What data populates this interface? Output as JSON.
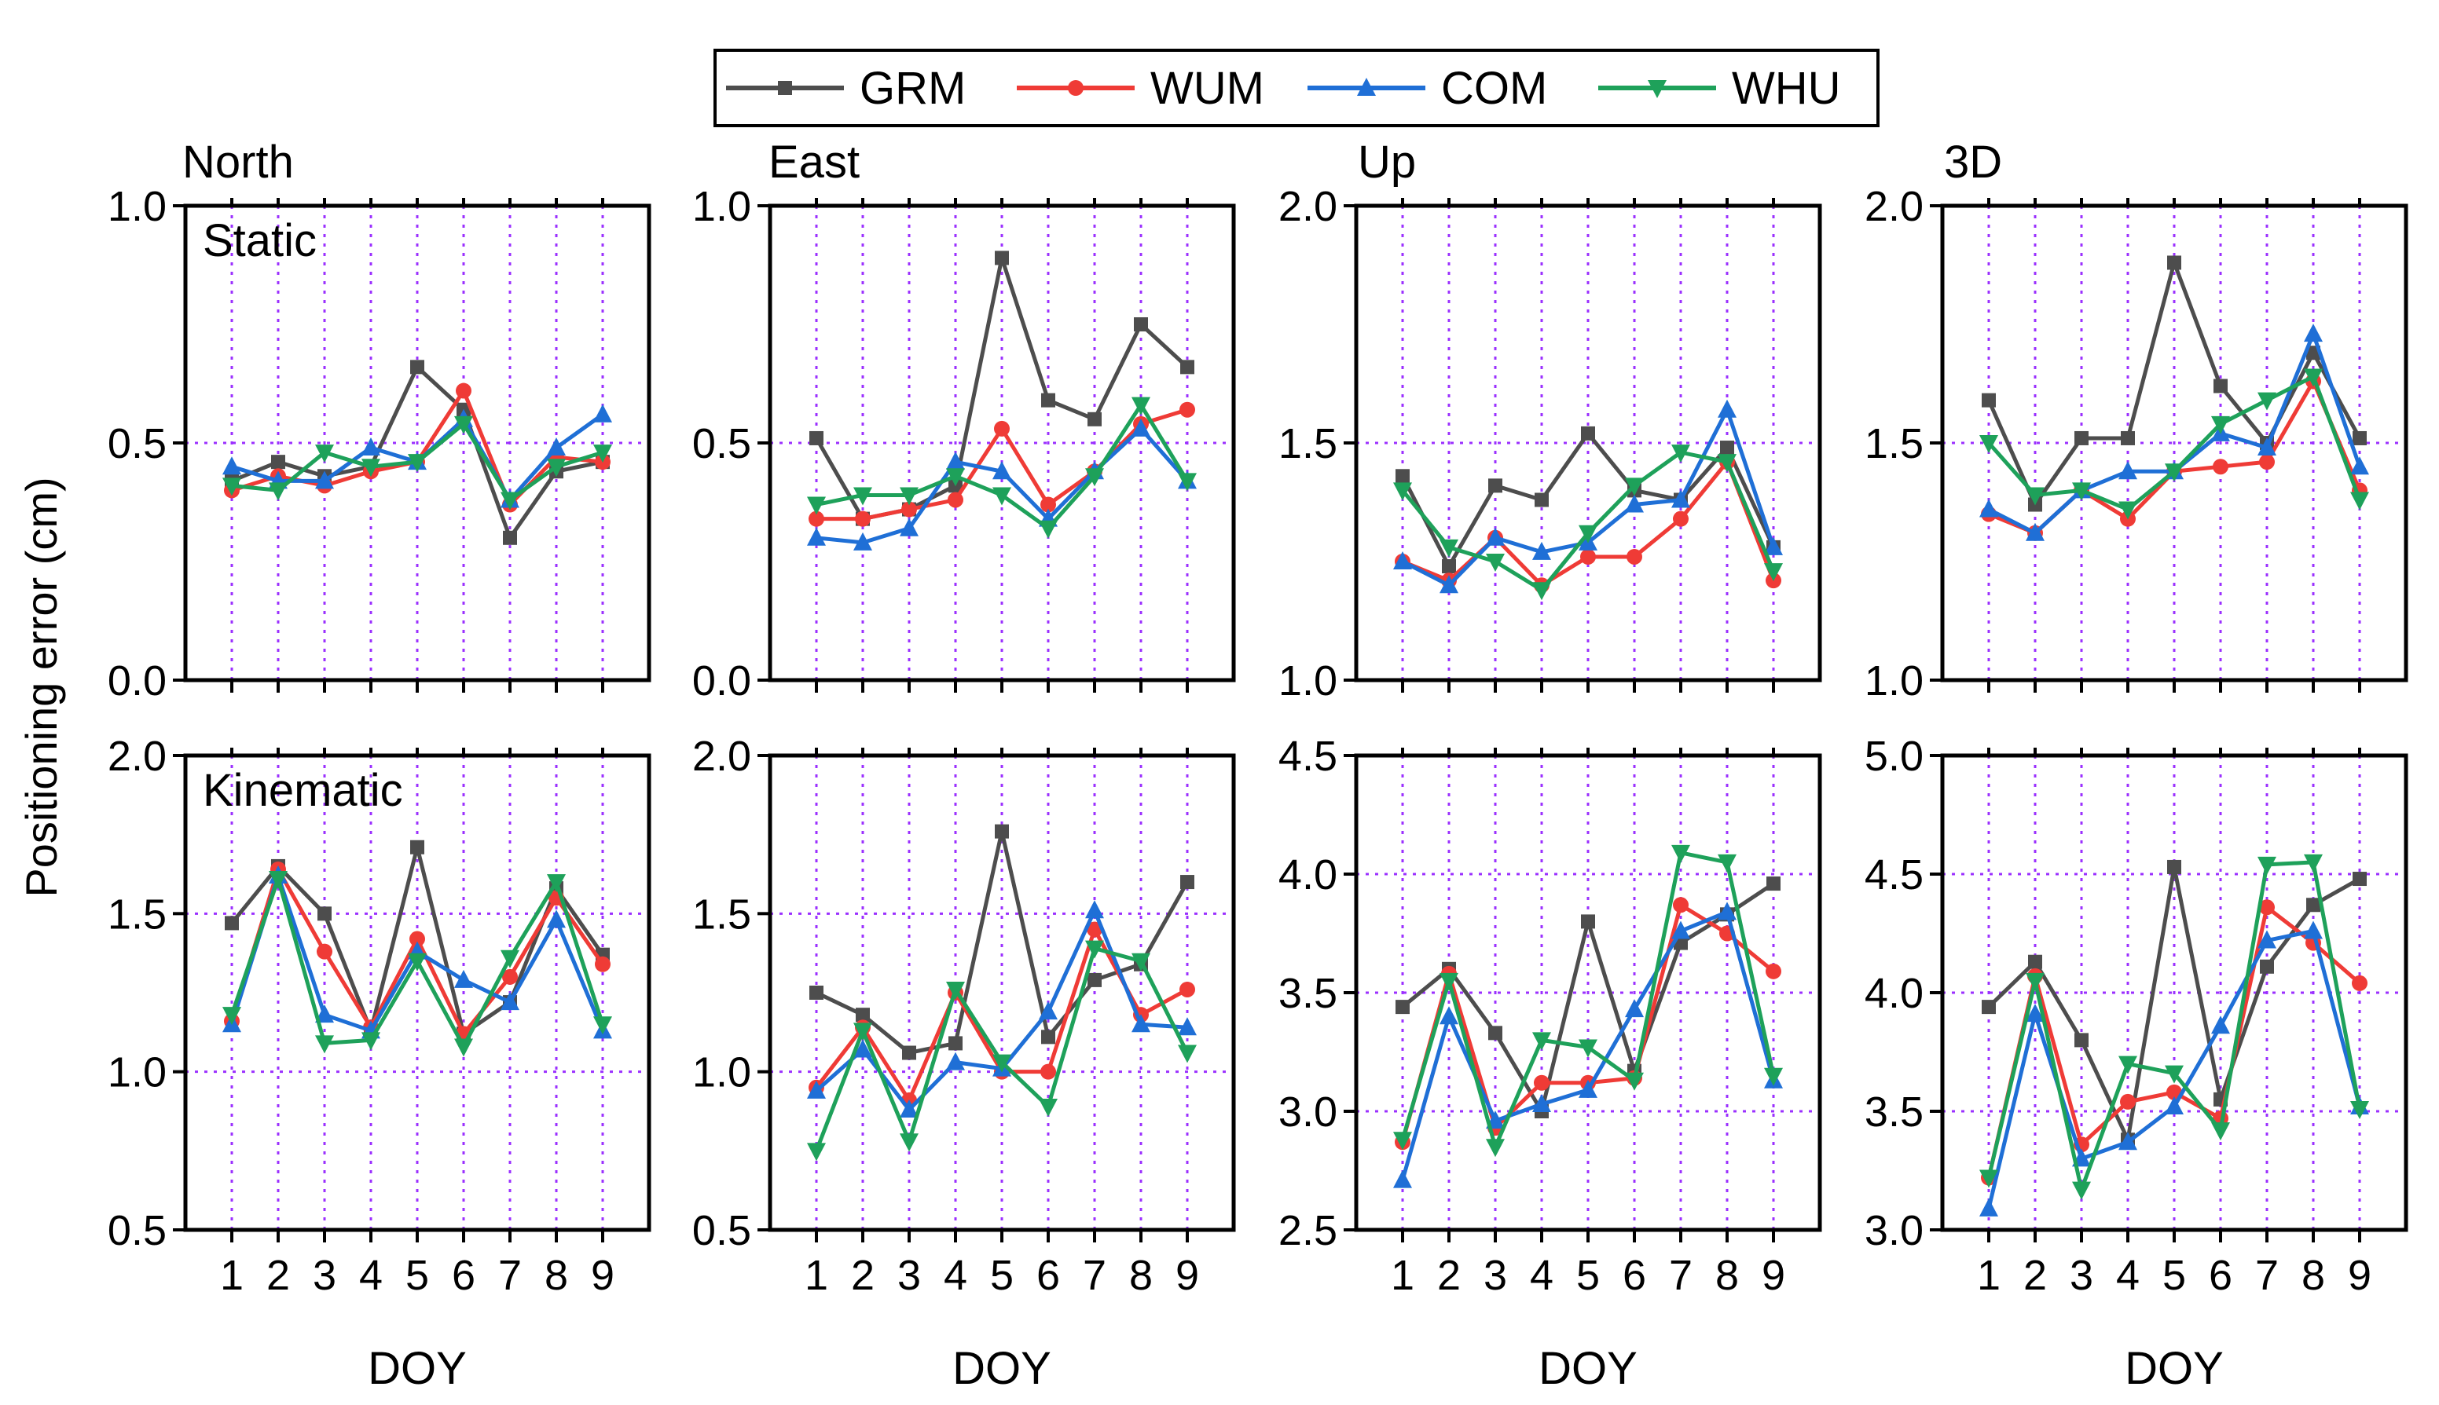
{
  "legend": [
    {
      "name": "GRM",
      "color": "#4d4d4d",
      "marker": "square"
    },
    {
      "name": "WUM",
      "color": "#ef3b36",
      "marker": "circle"
    },
    {
      "name": "COM",
      "color": "#1f6fd6",
      "marker": "triangle-up"
    },
    {
      "name": "WHU",
      "color": "#1ea15a",
      "marker": "triangle-down"
    }
  ],
  "y_axis_label": "Positioning error (cm)",
  "x_axis_label": "DOY",
  "row_labels": [
    "Static",
    "Kinematic"
  ],
  "chart_data": [
    {
      "type": "line",
      "title": "North",
      "mode": "Static",
      "xlabel": "",
      "ylabel": "Positioning error (cm)",
      "x": [
        1,
        2,
        3,
        4,
        5,
        6,
        7,
        8,
        9
      ],
      "ylim": [
        0.0,
        1.0
      ],
      "yticks": [
        "0.0",
        "0.5",
        "1.0"
      ],
      "series": [
        {
          "name": "GRM",
          "values": [
            0.42,
            0.46,
            0.43,
            0.45,
            0.66,
            0.57,
            0.3,
            0.44,
            0.46
          ]
        },
        {
          "name": "WUM",
          "values": [
            0.4,
            0.43,
            0.41,
            0.44,
            0.46,
            0.61,
            0.37,
            0.47,
            0.46
          ]
        },
        {
          "name": "COM",
          "values": [
            0.45,
            0.42,
            0.42,
            0.49,
            0.46,
            0.55,
            0.38,
            0.49,
            0.56
          ]
        },
        {
          "name": "WHU",
          "values": [
            0.41,
            0.4,
            0.48,
            0.45,
            0.46,
            0.54,
            0.38,
            0.45,
            0.48
          ]
        }
      ]
    },
    {
      "type": "line",
      "title": "East",
      "mode": "Static",
      "xlabel": "",
      "x": [
        1,
        2,
        3,
        4,
        5,
        6,
        7,
        8,
        9
      ],
      "ylim": [
        0.0,
        1.0
      ],
      "yticks": [
        "0.0",
        "0.5",
        "1.0"
      ],
      "series": [
        {
          "name": "GRM",
          "values": [
            0.51,
            0.34,
            0.36,
            0.41,
            0.89,
            0.59,
            0.55,
            0.75,
            0.66
          ]
        },
        {
          "name": "WUM",
          "values": [
            0.34,
            0.34,
            0.36,
            0.38,
            0.53,
            0.37,
            0.44,
            0.54,
            0.57
          ]
        },
        {
          "name": "COM",
          "values": [
            0.3,
            0.29,
            0.32,
            0.46,
            0.44,
            0.34,
            0.44,
            0.53,
            0.42
          ]
        },
        {
          "name": "WHU",
          "values": [
            0.37,
            0.39,
            0.39,
            0.43,
            0.39,
            0.32,
            0.43,
            0.58,
            0.42
          ]
        }
      ]
    },
    {
      "type": "line",
      "title": "Up",
      "mode": "Static",
      "xlabel": "",
      "x": [
        1,
        2,
        3,
        4,
        5,
        6,
        7,
        8,
        9
      ],
      "ylim": [
        1.0,
        2.0
      ],
      "yticks": [
        "1.0",
        "1.5",
        "2.0"
      ],
      "series": [
        {
          "name": "GRM",
          "values": [
            1.43,
            1.24,
            1.41,
            1.38,
            1.52,
            1.4,
            1.38,
            1.49,
            1.28
          ]
        },
        {
          "name": "WUM",
          "values": [
            1.25,
            1.21,
            1.3,
            1.2,
            1.26,
            1.26,
            1.34,
            1.46,
            1.21
          ]
        },
        {
          "name": "COM",
          "values": [
            1.25,
            1.2,
            1.3,
            1.27,
            1.29,
            1.37,
            1.38,
            1.57,
            1.28
          ]
        },
        {
          "name": "WHU",
          "values": [
            1.4,
            1.28,
            1.25,
            1.19,
            1.31,
            1.41,
            1.48,
            1.46,
            1.23
          ]
        }
      ]
    },
    {
      "type": "line",
      "title": "3D",
      "mode": "Static",
      "xlabel": "",
      "x": [
        1,
        2,
        3,
        4,
        5,
        6,
        7,
        8,
        9
      ],
      "ylim": [
        1.0,
        2.0
      ],
      "yticks": [
        "1.0",
        "1.5",
        "2.0"
      ],
      "series": [
        {
          "name": "GRM",
          "values": [
            1.59,
            1.37,
            1.51,
            1.51,
            1.88,
            1.62,
            1.5,
            1.69,
            1.51
          ]
        },
        {
          "name": "WUM",
          "values": [
            1.35,
            1.31,
            1.4,
            1.34,
            1.44,
            1.45,
            1.46,
            1.63,
            1.4
          ]
        },
        {
          "name": "COM",
          "values": [
            1.36,
            1.31,
            1.4,
            1.44,
            1.44,
            1.52,
            1.49,
            1.73,
            1.45
          ]
        },
        {
          "name": "WHU",
          "values": [
            1.5,
            1.39,
            1.4,
            1.36,
            1.44,
            1.54,
            1.59,
            1.64,
            1.38
          ]
        }
      ]
    },
    {
      "type": "line",
      "title": "",
      "mode": "Kinematic",
      "xlabel": "DOY",
      "x": [
        1,
        2,
        3,
        4,
        5,
        6,
        7,
        8,
        9
      ],
      "ylim": [
        0.5,
        2.0
      ],
      "yticks": [
        "0.5",
        "1.0",
        "1.5",
        "2.0"
      ],
      "series": [
        {
          "name": "GRM",
          "values": [
            1.47,
            1.65,
            1.5,
            1.13,
            1.71,
            1.12,
            1.22,
            1.58,
            1.37
          ]
        },
        {
          "name": "WUM",
          "values": [
            1.16,
            1.64,
            1.38,
            1.14,
            1.42,
            1.12,
            1.3,
            1.55,
            1.34
          ]
        },
        {
          "name": "COM",
          "values": [
            1.15,
            1.62,
            1.18,
            1.13,
            1.38,
            1.29,
            1.22,
            1.48,
            1.13
          ]
        },
        {
          "name": "WHU",
          "values": [
            1.18,
            1.61,
            1.09,
            1.1,
            1.35,
            1.08,
            1.36,
            1.6,
            1.15
          ]
        }
      ]
    },
    {
      "type": "line",
      "title": "",
      "mode": "Kinematic",
      "xlabel": "DOY",
      "x": [
        1,
        2,
        3,
        4,
        5,
        6,
        7,
        8,
        9
      ],
      "ylim": [
        0.5,
        2.0
      ],
      "yticks": [
        "0.5",
        "1.0",
        "1.5",
        "2.0"
      ],
      "series": [
        {
          "name": "GRM",
          "values": [
            1.25,
            1.18,
            1.06,
            1.09,
            1.76,
            1.11,
            1.29,
            1.34,
            1.6
          ]
        },
        {
          "name": "WUM",
          "values": [
            0.95,
            1.14,
            0.91,
            1.25,
            1.0,
            1.0,
            1.45,
            1.18,
            1.26
          ]
        },
        {
          "name": "COM",
          "values": [
            0.94,
            1.07,
            0.88,
            1.03,
            1.01,
            1.19,
            1.51,
            1.15,
            1.14
          ]
        },
        {
          "name": "WHU",
          "values": [
            0.75,
            1.13,
            0.78,
            1.26,
            1.03,
            0.89,
            1.39,
            1.35,
            1.06
          ]
        }
      ]
    },
    {
      "type": "line",
      "title": "",
      "mode": "Kinematic",
      "xlabel": "DOY",
      "x": [
        1,
        2,
        3,
        4,
        5,
        6,
        7,
        8,
        9
      ],
      "ylim": [
        2.5,
        4.5
      ],
      "yticks": [
        "2.5",
        "3.0",
        "3.5",
        "4.0",
        "4.5"
      ],
      "series": [
        {
          "name": "GRM",
          "values": [
            3.44,
            3.6,
            3.33,
            3.0,
            3.8,
            3.17,
            3.71,
            3.83,
            3.96
          ]
        },
        {
          "name": "WUM",
          "values": [
            2.87,
            3.58,
            2.93,
            3.12,
            3.12,
            3.14,
            3.87,
            3.75,
            3.59
          ]
        },
        {
          "name": "COM",
          "values": [
            2.71,
            3.4,
            2.96,
            3.03,
            3.09,
            3.43,
            3.76,
            3.84,
            3.13
          ]
        },
        {
          "name": "WHU",
          "values": [
            2.88,
            3.55,
            2.85,
            3.3,
            3.27,
            3.13,
            4.09,
            4.05,
            3.15
          ]
        }
      ]
    },
    {
      "type": "line",
      "title": "",
      "mode": "Kinematic",
      "xlabel": "DOY",
      "x": [
        1,
        2,
        3,
        4,
        5,
        6,
        7,
        8,
        9
      ],
      "ylim": [
        3.0,
        5.0
      ],
      "yticks": [
        "3.0",
        "3.5",
        "4.0",
        "4.5",
        "5.0"
      ],
      "series": [
        {
          "name": "GRM",
          "values": [
            3.94,
            4.13,
            3.8,
            3.38,
            4.53,
            3.55,
            4.11,
            4.37,
            4.48
          ]
        },
        {
          "name": "WUM",
          "values": [
            3.22,
            4.07,
            3.36,
            3.54,
            3.58,
            3.47,
            4.36,
            4.21,
            4.04
          ]
        },
        {
          "name": "COM",
          "values": [
            3.09,
            3.91,
            3.3,
            3.37,
            3.52,
            3.86,
            4.22,
            4.26,
            3.52
          ]
        },
        {
          "name": "WHU",
          "values": [
            3.22,
            4.05,
            3.17,
            3.7,
            3.66,
            3.42,
            4.54,
            4.55,
            3.51
          ]
        }
      ]
    }
  ]
}
